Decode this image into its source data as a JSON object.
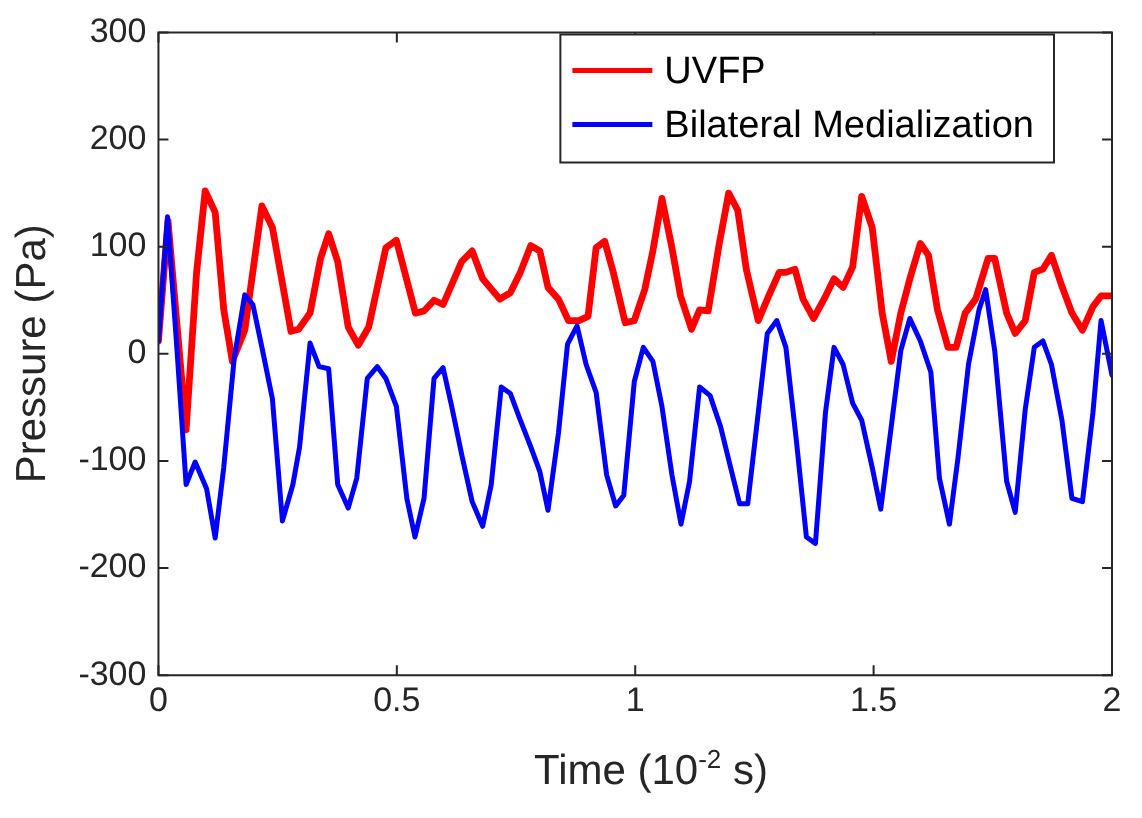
{
  "chart_data": {
    "type": "line",
    "xlabel": "Time (10$^{-2}$ s)",
    "ylabel": "Pressure (Pa)",
    "xlim": [
      0,
      2
    ],
    "xticks": [
      0,
      0.5,
      1,
      1.5,
      2
    ],
    "ylim": [
      -300,
      300
    ],
    "yticks": [
      -300,
      -200,
      -100,
      0,
      100,
      200,
      300
    ],
    "grid": false,
    "legend": "top right",
    "marker": "none",
    "line_style": "solid",
    "series": [
      {
        "name": "UVFP",
        "color": "#ff0000",
        "x": [
          0,
          0.02,
          0.058,
          0.08,
          0.098,
          0.119,
          0.137,
          0.155,
          0.181,
          0.217,
          0.239,
          0.278,
          0.294,
          0.318,
          0.34,
          0.357,
          0.376,
          0.398,
          0.419,
          0.441,
          0.477,
          0.499,
          0.539,
          0.557,
          0.578,
          0.597,
          0.636,
          0.658,
          0.68,
          0.716,
          0.738,
          0.759,
          0.781,
          0.8,
          0.817,
          0.839,
          0.86,
          0.882,
          0.901,
          0.918,
          0.936,
          0.954,
          0.979,
          0.998,
          1.02,
          1.037,
          1.056,
          1.077,
          1.095,
          1.118,
          1.135,
          1.153,
          1.176,
          1.196,
          1.215,
          1.233,
          1.258,
          1.28,
          1.302,
          1.316,
          1.335,
          1.352,
          1.374,
          1.396,
          1.417,
          1.436,
          1.456,
          1.475,
          1.497,
          1.518,
          1.537,
          1.557,
          1.576,
          1.598,
          1.615,
          1.634,
          1.656,
          1.673,
          1.692,
          1.714,
          1.74,
          1.754,
          1.779,
          1.797,
          1.818,
          1.837,
          1.855,
          1.873,
          1.895,
          1.916,
          1.938,
          1.96,
          1.977,
          2
        ],
        "values": [
          12,
          124,
          -71,
          76,
          152,
          132,
          41,
          -7,
          22,
          138,
          118,
          21,
          23,
          38,
          89,
          112,
          86,
          25,
          8,
          25,
          99,
          106,
          38,
          40,
          50,
          46,
          86,
          96,
          70,
          51,
          57,
          76,
          101,
          96,
          62,
          51,
          31,
          31,
          35,
          99,
          105,
          76,
          29,
          31,
          60,
          96,
          145,
          99,
          54,
          23,
          41,
          40,
          102,
          150,
          134,
          79,
          31,
          54,
          76,
          76,
          79,
          51,
          33,
          51,
          70,
          62,
          81,
          147,
          118,
          38,
          -7,
          38,
          70,
          103,
          92,
          41,
          6,
          6,
          38,
          51,
          89,
          89,
          38,
          19,
          31,
          76,
          79,
          92,
          63,
          38,
          22,
          44,
          54,
          54
        ]
      },
      {
        "name": "Bilateral Medialization",
        "color": "#0000ff",
        "x": [
          0,
          0.019,
          0.039,
          0.058,
          0.077,
          0.101,
          0.119,
          0.137,
          0.159,
          0.181,
          0.198,
          0.217,
          0.239,
          0.26,
          0.282,
          0.296,
          0.318,
          0.337,
          0.357,
          0.376,
          0.398,
          0.416,
          0.438,
          0.459,
          0.477,
          0.499,
          0.521,
          0.538,
          0.557,
          0.578,
          0.597,
          0.615,
          0.636,
          0.658,
          0.68,
          0.698,
          0.719,
          0.738,
          0.759,
          0.781,
          0.8,
          0.817,
          0.839,
          0.858,
          0.878,
          0.897,
          0.918,
          0.94,
          0.959,
          0.976,
          0.998,
          1.017,
          1.037,
          1.056,
          1.077,
          1.096,
          1.114,
          1.135,
          1.157,
          1.179,
          1.2,
          1.219,
          1.236,
          1.258,
          1.277,
          1.297,
          1.316,
          1.338,
          1.359,
          1.378,
          1.399,
          1.417,
          1.436,
          1.456,
          1.475,
          1.497,
          1.515,
          1.537,
          1.557,
          1.576,
          1.598,
          1.62,
          1.638,
          1.659,
          1.677,
          1.699,
          1.721,
          1.735,
          1.754,
          1.779,
          1.797,
          1.818,
          1.837,
          1.855,
          1.873,
          1.895,
          1.916,
          1.938,
          1.96,
          1.977,
          2
        ],
        "values": [
          12,
          128,
          3,
          -122,
          -101,
          -126,
          -172,
          -106,
          -4,
          55,
          46,
          6,
          -42,
          -156,
          -122,
          -87,
          10,
          -12,
          -14,
          -122,
          -144,
          -116,
          -23,
          -12,
          -23,
          -49,
          -135,
          -171,
          -135,
          -23,
          -13,
          -49,
          -94,
          -138,
          -161,
          -122,
          -31,
          -37,
          -62,
          -87,
          -110,
          -146,
          -74,
          9,
          26,
          -10,
          -36,
          -113,
          -142,
          -132,
          -26,
          6,
          -7,
          -49,
          -113,
          -159,
          -119,
          -31,
          -39,
          -68,
          -106,
          -140,
          -140,
          -55,
          19,
          31,
          6,
          -81,
          -171,
          -177,
          -55,
          6,
          -10,
          -46,
          -62,
          -106,
          -145,
          -68,
          3,
          33,
          12,
          -17,
          -116,
          -159,
          -97,
          -10,
          41,
          60,
          3,
          -119,
          -148,
          -52,
          6,
          12,
          -10,
          -62,
          -135,
          -138,
          -55,
          31,
          -20
        ]
      }
    ]
  }
}
